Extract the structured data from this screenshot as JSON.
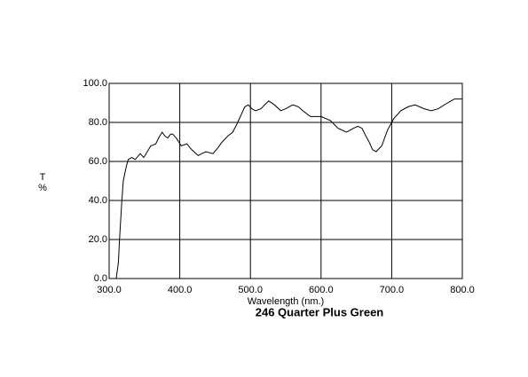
{
  "chart_data": {
    "type": "line",
    "title": "246 Quarter Plus Green",
    "xlabel": "Wavelength (nm.)",
    "ylabel": "T",
    "yunit": "%",
    "x": [
      300,
      310,
      313,
      315,
      318,
      320,
      324,
      327,
      332,
      337,
      344,
      349,
      354,
      359,
      366,
      370,
      375,
      379,
      383,
      387,
      390,
      395,
      402,
      410,
      417,
      426,
      431,
      437,
      447,
      454,
      460,
      468,
      475,
      482,
      487,
      492,
      497,
      502,
      507,
      515,
      520,
      526,
      534,
      543,
      550,
      560,
      568,
      574,
      585,
      600,
      613,
      624,
      636,
      646,
      652,
      658,
      662,
      668,
      673,
      678,
      686,
      694,
      703,
      713,
      723,
      733,
      746,
      756,
      766,
      779,
      789,
      800
    ],
    "series": [
      {
        "color": "#000000",
        "values": [
          0,
          0,
          8,
          22,
          40,
          50,
          57,
          61,
          62,
          61,
          64,
          62,
          65,
          68,
          69,
          72,
          75,
          73,
          72,
          74,
          74,
          72,
          68,
          69,
          66,
          63,
          64,
          65,
          64,
          67,
          70,
          73,
          75,
          80,
          84,
          88,
          89,
          87,
          86,
          87,
          89,
          91,
          89,
          86,
          87,
          89,
          88,
          86,
          83,
          83,
          81,
          77,
          75,
          77,
          78,
          77,
          74,
          70,
          66,
          65,
          68,
          76,
          82,
          86,
          88,
          89,
          87,
          86,
          87,
          90,
          92,
          92
        ]
      }
    ],
    "xlim": [
      300,
      800
    ],
    "ylim": [
      0,
      100
    ],
    "xticks": [
      {
        "value": 300,
        "label": "300.0"
      },
      {
        "value": 400,
        "label": "400.0"
      },
      {
        "value": 500,
        "label": "500.0"
      },
      {
        "value": 600,
        "label": "600.0"
      },
      {
        "value": 700,
        "label": "700.0"
      },
      {
        "value": 800,
        "label": "800.0"
      }
    ],
    "yticks": [
      {
        "value": 0,
        "label": "0.0"
      },
      {
        "value": 20,
        "label": "20.0"
      },
      {
        "value": 40,
        "label": "40.0"
      },
      {
        "value": 60,
        "label": "60.0"
      },
      {
        "value": 80,
        "label": "80.0"
      },
      {
        "value": 100,
        "label": "100.0"
      }
    ],
    "grid": true
  }
}
